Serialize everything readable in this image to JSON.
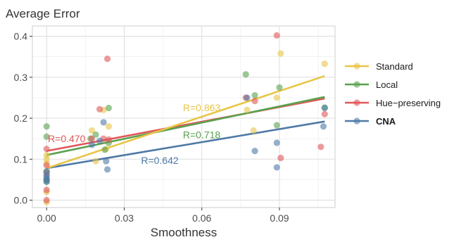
{
  "chart_data": {
    "type": "scatter",
    "title": "Average Error",
    "xlabel": "Smoothness",
    "ylabel": "",
    "xlim": [
      -0.0055,
      0.1115
    ],
    "ylim": [
      -0.018,
      0.425
    ],
    "x_ticks": [
      0.0,
      0.03,
      0.06,
      0.09
    ],
    "x_tick_labels": [
      "0.00",
      "0.03",
      "0.06",
      "0.09"
    ],
    "y_ticks": [
      0.0,
      0.1,
      0.2,
      0.3,
      0.4
    ],
    "y_tick_labels": [
      "0.0",
      "0.1",
      "0.2",
      "0.3",
      "0.4"
    ],
    "grid": true,
    "legend_position": "right",
    "series": [
      {
        "name": "Standard",
        "color": "#E8C547",
        "bold": false,
        "points": [
          [
            0.0,
            0.1
          ],
          [
            0.0,
            0.09
          ],
          [
            0.0,
            0.11
          ],
          [
            0.0,
            -0.005
          ],
          [
            0.0,
            0.02
          ],
          [
            0.0175,
            0.17
          ],
          [
            0.019,
            0.095
          ],
          [
            0.022,
            0.22
          ],
          [
            0.023,
            0.125
          ],
          [
            0.024,
            0.18
          ],
          [
            0.0775,
            0.22
          ],
          [
            0.08,
            0.17
          ],
          [
            0.089,
            0.25
          ],
          [
            0.0905,
            0.358
          ],
          [
            0.1075,
            0.333
          ]
        ],
        "fit": [
          [
            0.0,
            0.078
          ],
          [
            0.1075,
            0.303
          ]
        ],
        "r_label": "R=0.863"
      },
      {
        "name": "Local",
        "color": "#59A14F",
        "bold": false,
        "points": [
          [
            0.0,
            0.18
          ],
          [
            0.0,
            0.155
          ],
          [
            0.0,
            0.07
          ],
          [
            0.0,
            0.05
          ],
          [
            0.0,
            0.045
          ],
          [
            0.017,
            0.15
          ],
          [
            0.019,
            0.16
          ],
          [
            0.0225,
            0.123
          ],
          [
            0.024,
            0.14
          ],
          [
            0.024,
            0.225
          ],
          [
            0.077,
            0.307
          ],
          [
            0.0805,
            0.256
          ],
          [
            0.089,
            0.183
          ],
          [
            0.09,
            0.275
          ],
          [
            0.1075,
            0.226
          ]
        ],
        "fit": [
          [
            0.0,
            0.11
          ],
          [
            0.1075,
            0.252
          ]
        ],
        "r_label": "R=0.718"
      },
      {
        "name": "Hue−preserving",
        "color": "#E15759",
        "bold": false,
        "points": [
          [
            0.0,
            0.125
          ],
          [
            0.0,
            0.085
          ],
          [
            0.0,
            0.025
          ],
          [
            0.0,
            0.0
          ],
          [
            0.0,
            0.065
          ],
          [
            0.0175,
            0.15
          ],
          [
            0.0205,
            0.222
          ],
          [
            0.022,
            0.15
          ],
          [
            0.0235,
            0.345
          ],
          [
            0.024,
            0.148
          ],
          [
            0.077,
            0.25
          ],
          [
            0.0805,
            0.242
          ],
          [
            0.089,
            0.402
          ],
          [
            0.0905,
            0.103
          ],
          [
            0.106,
            0.13
          ],
          [
            0.1075,
            0.21
          ]
        ],
        "fit": [
          [
            0.0,
            0.12
          ],
          [
            0.1075,
            0.248
          ]
        ],
        "r_label": "R=0.470"
      },
      {
        "name": "CNA",
        "color": "#4E79A7",
        "bold": true,
        "points": [
          [
            0.0,
            0.06
          ],
          [
            0.0,
            0.055
          ],
          [
            0.0,
            0.05
          ],
          [
            0.0,
            0.045
          ],
          [
            0.0,
            0.07
          ],
          [
            0.0175,
            0.135
          ],
          [
            0.0205,
            0.145
          ],
          [
            0.022,
            0.19
          ],
          [
            0.023,
            0.095
          ],
          [
            0.0235,
            0.075
          ],
          [
            0.0775,
            0.25
          ],
          [
            0.0805,
            0.12
          ],
          [
            0.089,
            0.14
          ],
          [
            0.089,
            0.08
          ],
          [
            0.107,
            0.18
          ],
          [
            0.1075,
            0.225
          ]
        ],
        "fit": [
          [
            0.0,
            0.078
          ],
          [
            0.1075,
            0.192
          ]
        ],
        "r_label": "R=0.642"
      }
    ]
  }
}
